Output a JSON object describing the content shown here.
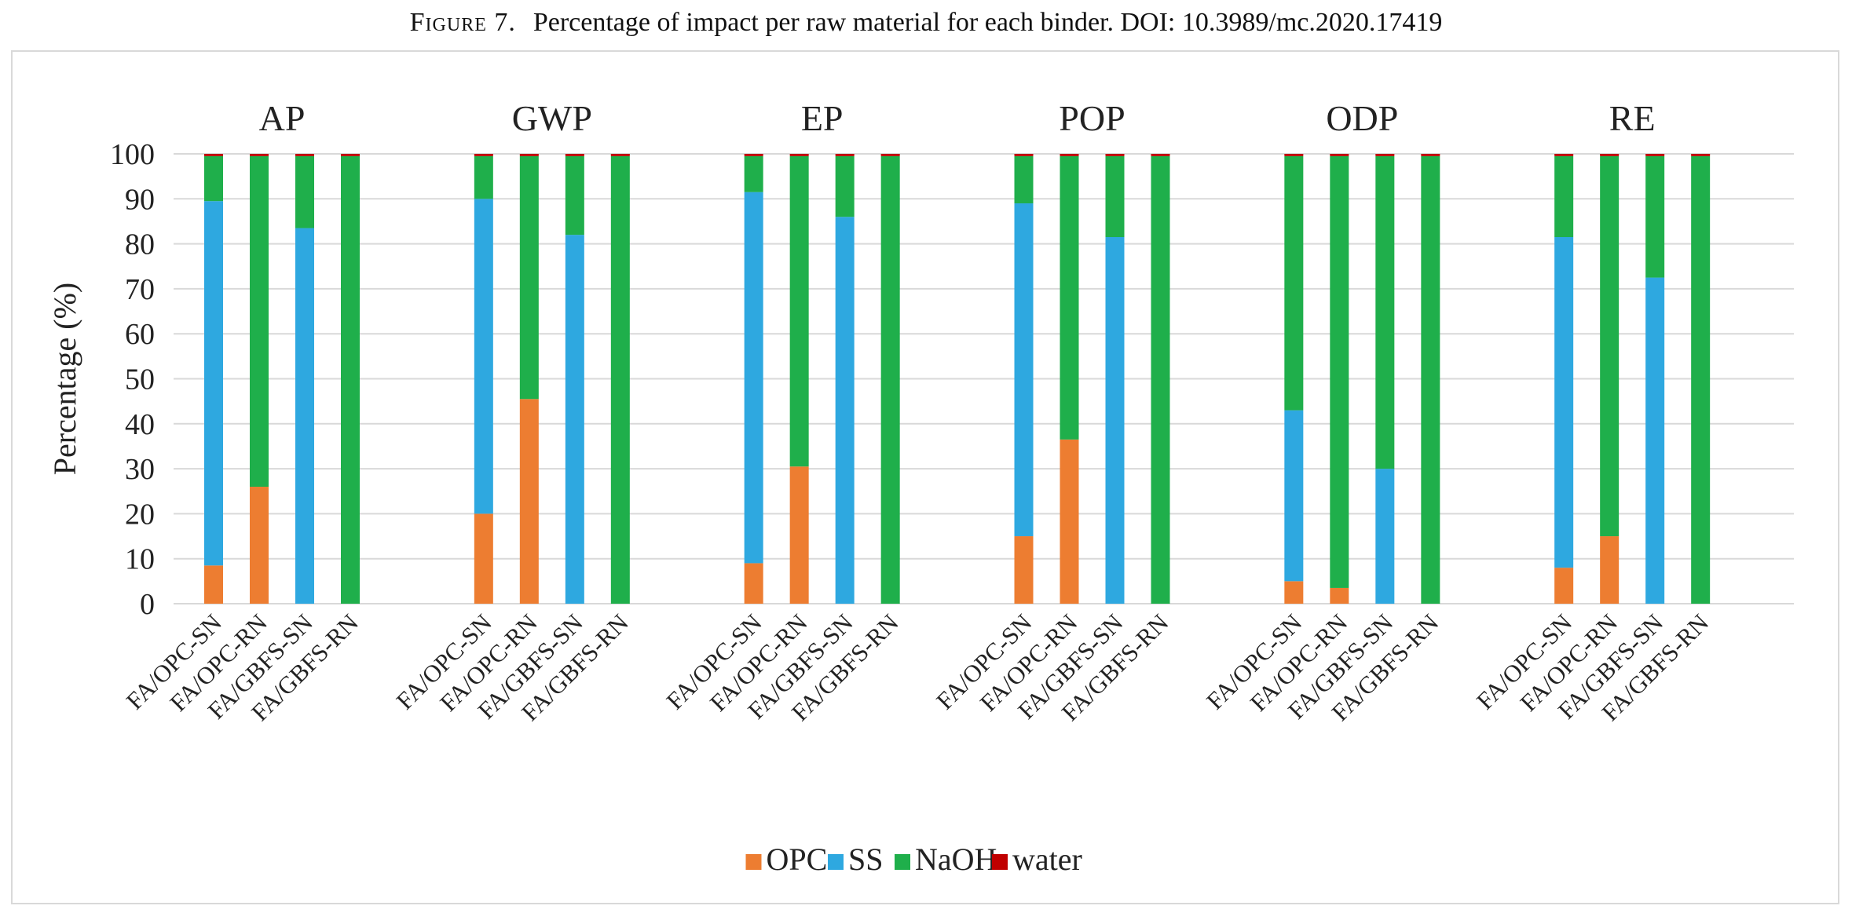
{
  "caption": {
    "figure_label": "Figure 7.",
    "text": "Percentage of impact per raw material for each binder. DOI: 10.3989/mc.2020.17419"
  },
  "chart_data": {
    "type": "bar",
    "stacked": true,
    "title": "",
    "ylabel": "Percentage (%)",
    "ylim": [
      0,
      100
    ],
    "yticks": [
      0,
      10,
      20,
      30,
      40,
      50,
      60,
      70,
      80,
      90,
      100
    ],
    "grid": true,
    "legend": {
      "position": "bottom"
    },
    "binders": [
      "FA/OPC-SN",
      "FA/OPC-RN",
      "FA/GBFS-SN",
      "FA/GBFS-RN"
    ],
    "series": [
      {
        "name": "OPC",
        "color": "#ED7D31"
      },
      {
        "name": "SS",
        "color": "#2EA8E0"
      },
      {
        "name": "NaOH",
        "color": "#1FAF4B"
      },
      {
        "name": "water",
        "color": "#C00000"
      }
    ],
    "groups": [
      {
        "label": "AP",
        "values": {
          "OPC": [
            8.5,
            26,
            0,
            0
          ],
          "SS": [
            81,
            0,
            83.5,
            0
          ],
          "NaOH": [
            10,
            73.5,
            16,
            99.5
          ],
          "water": [
            0.5,
            0.5,
            0.5,
            0.5
          ]
        }
      },
      {
        "label": "GWP",
        "values": {
          "OPC": [
            20,
            45.5,
            0,
            0
          ],
          "SS": [
            70,
            0,
            82,
            0
          ],
          "NaOH": [
            9.5,
            54,
            17.5,
            99.5
          ],
          "water": [
            0.5,
            0.5,
            0.5,
            0.5
          ]
        }
      },
      {
        "label": "EP",
        "values": {
          "OPC": [
            9,
            30.5,
            0,
            0
          ],
          "SS": [
            82.5,
            0,
            86,
            0
          ],
          "NaOH": [
            8,
            69,
            13.5,
            99.5
          ],
          "water": [
            0.5,
            0.5,
            0.5,
            0.5
          ]
        }
      },
      {
        "label": "POP",
        "values": {
          "OPC": [
            15,
            36.5,
            0,
            0
          ],
          "SS": [
            74,
            0,
            81.5,
            0
          ],
          "NaOH": [
            10.5,
            63,
            18,
            99.5
          ],
          "water": [
            0.5,
            0.5,
            0.5,
            0.5
          ]
        }
      },
      {
        "label": "ODP",
        "values": {
          "OPC": [
            5,
            3.5,
            0,
            0
          ],
          "SS": [
            38,
            0,
            30,
            0
          ],
          "NaOH": [
            56.5,
            96,
            69.5,
            99.5
          ],
          "water": [
            0.5,
            0.5,
            0.5,
            0.5
          ]
        }
      },
      {
        "label": "RE",
        "values": {
          "OPC": [
            8,
            15,
            0,
            0
          ],
          "SS": [
            73.5,
            0,
            72.5,
            0
          ],
          "NaOH": [
            18,
            84.5,
            27,
            99.5
          ],
          "water": [
            0.5,
            0.5,
            0.5,
            0.5
          ]
        }
      }
    ]
  }
}
